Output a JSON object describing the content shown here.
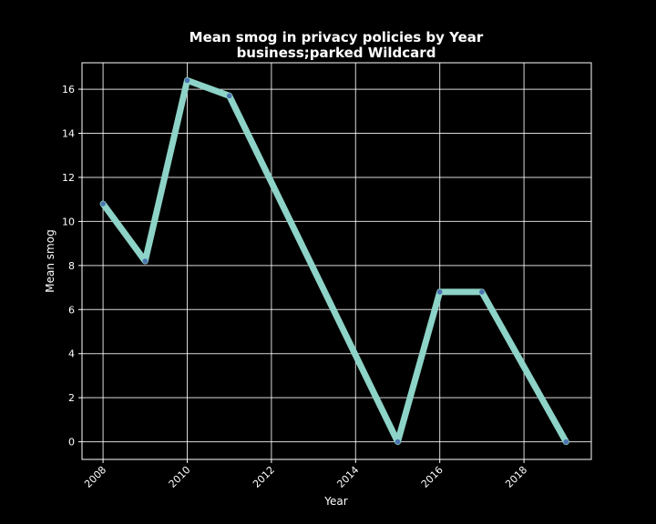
{
  "chart_data": {
    "type": "line",
    "title": "Mean smog in privacy policies by Year",
    "subtitle": "business;parked Wildcard",
    "xlabel": "Year",
    "ylabel": "Mean smog",
    "x": [
      2008,
      2009,
      2010,
      2011,
      2015,
      2016,
      2017,
      2019
    ],
    "series": [
      {
        "values": [
          10.8,
          8.2,
          16.4,
          15.7,
          0.0,
          6.8,
          6.8,
          0.0
        ]
      }
    ],
    "xlim": [
      2007.5,
      2019.6
    ],
    "ylim": [
      -0.8,
      17.2
    ],
    "xticks": [
      "2008",
      "2010",
      "2012",
      "2014",
      "2016",
      "2018"
    ],
    "yticks": [
      "0",
      "2",
      "4",
      "6",
      "8",
      "10",
      "12",
      "14",
      "16"
    ],
    "grid": true,
    "background": "#000000",
    "line_color": "#8dd3c7",
    "marker_color": "#4c72b0"
  }
}
